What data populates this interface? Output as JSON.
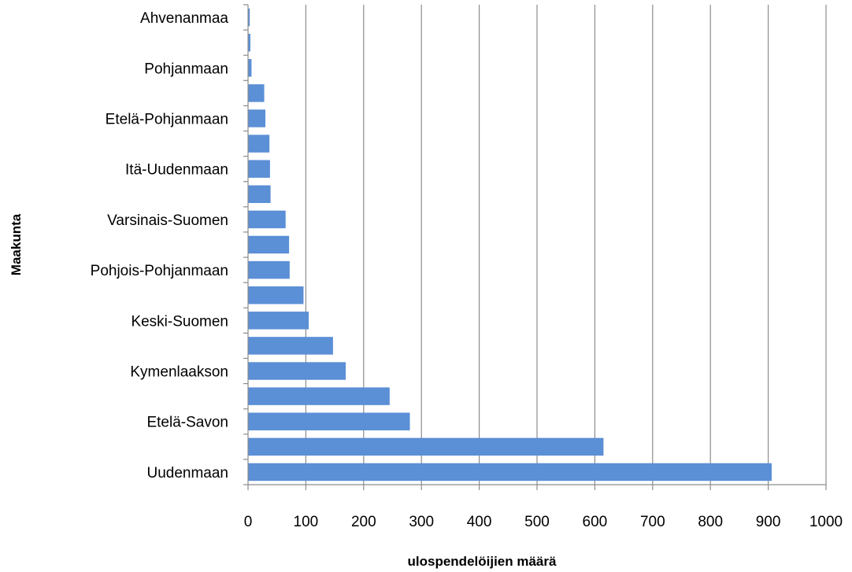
{
  "chart_data": {
    "type": "bar",
    "orientation": "horizontal",
    "title": "",
    "xlabel": "ulospendelöijien määrä",
    "ylabel": "Maakunta",
    "xlim": [
      0,
      1000
    ],
    "xticks": [
      0,
      100,
      200,
      300,
      400,
      500,
      600,
      700,
      800,
      900,
      1000
    ],
    "grid": true,
    "legend": "none",
    "bar_color": "#5b8fd6",
    "categories": [
      "Ahvenanmaa",
      "",
      "Pohjanmaan",
      "",
      "Etelä-Pohjanmaan",
      "",
      "Itä-Uudenmaan",
      "",
      "Varsinais-Suomen",
      "",
      "Pohjois-Pohjanmaan",
      "",
      "Keski-Suomen",
      "",
      "Kymenlaakson",
      "",
      "Etelä-Savon",
      "",
      "Uudenmaan"
    ],
    "values": [
      3,
      4,
      6,
      28,
      30,
      37,
      38,
      39,
      65,
      71,
      72,
      96,
      105,
      147,
      169,
      245,
      280,
      615,
      906
    ]
  }
}
